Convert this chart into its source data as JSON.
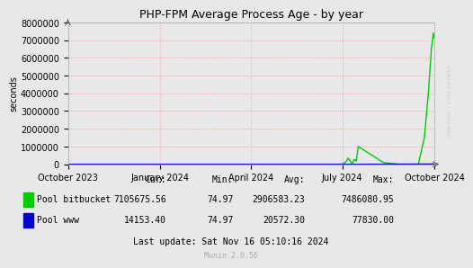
{
  "title": "PHP-FPM Average Process Age - by year",
  "ylabel": "seconds",
  "background_color": "#e8e8e8",
  "plot_bg_color": "#e8e8e8",
  "grid_color": "#ff9999",
  "x_tick_labels": [
    "October 2023",
    "January 2024",
    "April 2024",
    "July 2024",
    "October 2024"
  ],
  "x_tick_positions": [
    0,
    92,
    183,
    274,
    366
  ],
  "ylim": [
    0,
    8000000
  ],
  "yticks": [
    0,
    1000000,
    2000000,
    3000000,
    4000000,
    5000000,
    6000000,
    7000000,
    8000000
  ],
  "series": [
    {
      "name": "Pool bitbucket",
      "color": "#00cc00",
      "data_x": [
        0,
        270,
        274,
        278,
        280,
        282,
        284,
        286,
        288,
        290,
        315,
        330,
        340,
        350,
        356,
        360,
        363,
        365,
        366
      ],
      "data_y": [
        0,
        0,
        0,
        150000,
        350000,
        200000,
        75,
        270000,
        180000,
        1000000,
        100000,
        75,
        75,
        75,
        1500000,
        4000000,
        6500000,
        7400000,
        7105675
      ]
    },
    {
      "name": "Pool www",
      "color": "#0000cc",
      "data_x": [
        0,
        270,
        275,
        280,
        285,
        366
      ],
      "data_y": [
        0,
        0,
        200,
        150,
        75,
        14153
      ]
    }
  ],
  "legend": [
    {
      "label": "Pool bitbucket",
      "color": "#00cc00"
    },
    {
      "label": "Pool www",
      "color": "#0000cc"
    }
  ],
  "table_headers": [
    "Cur:",
    "Min:",
    "Avg:",
    "Max:"
  ],
  "table_rows": [
    [
      "Pool bitbucket",
      "7105675.56",
      "74.97",
      "2906583.23",
      "7486080.95"
    ],
    [
      "Pool www",
      "14153.40",
      "74.97",
      "20572.30",
      "77830.00"
    ]
  ],
  "last_update": "Last update: Sat Nov 16 05:10:16 2024",
  "munin_version": "Munin 2.0.56",
  "watermark": "RRDTOOL / TOBI OETIKER"
}
